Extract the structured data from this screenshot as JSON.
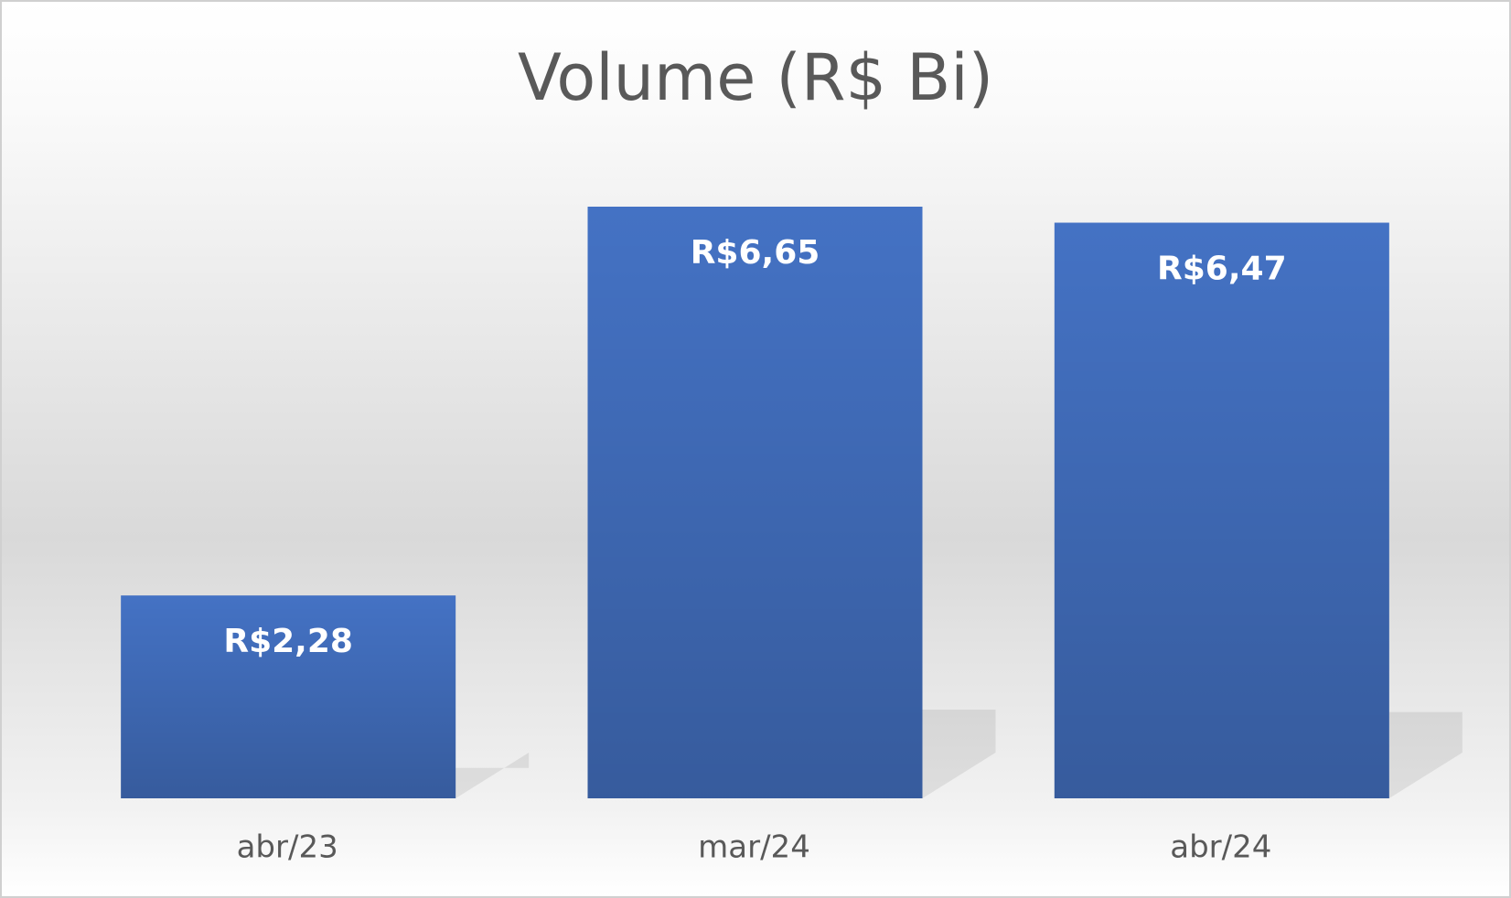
{
  "chart_data": {
    "type": "bar",
    "title": "Volume (R$ Bi)",
    "categories": [
      "abr/23",
      "mar/24",
      "abr/24"
    ],
    "values": [
      2.28,
      6.65,
      6.47
    ],
    "value_labels": [
      "R$2,28",
      "R$6,65",
      "R$6,47"
    ],
    "color": "#4472c4"
  }
}
